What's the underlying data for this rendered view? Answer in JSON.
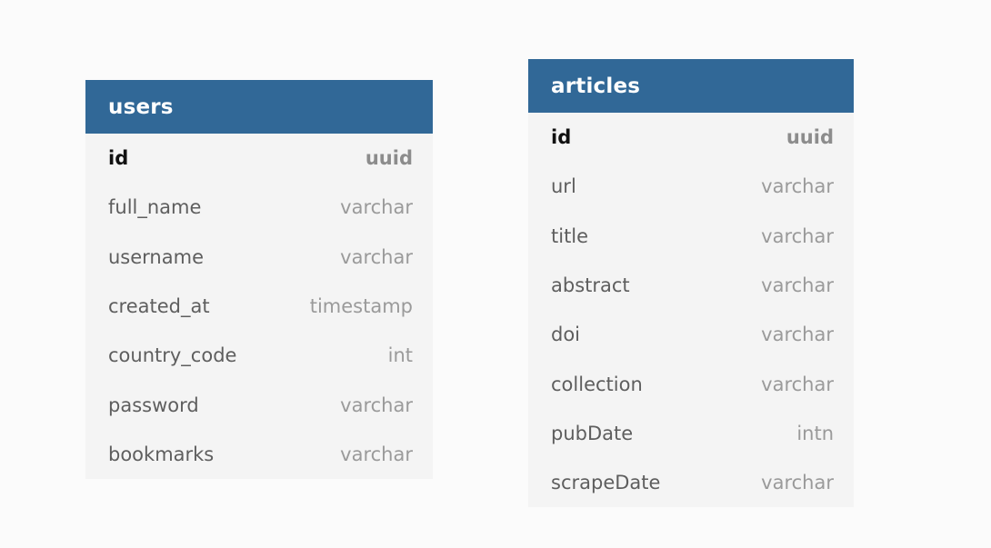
{
  "tables": [
    {
      "name": "users",
      "columns": [
        {
          "name": "id",
          "type": "uuid",
          "primary": true
        },
        {
          "name": "full_name",
          "type": "varchar",
          "primary": false
        },
        {
          "name": "username",
          "type": "varchar",
          "primary": false
        },
        {
          "name": "created_at",
          "type": "timestamp",
          "primary": false
        },
        {
          "name": "country_code",
          "type": "int",
          "primary": false
        },
        {
          "name": "password",
          "type": "varchar",
          "primary": false
        },
        {
          "name": "bookmarks",
          "type": "varchar",
          "primary": false
        }
      ]
    },
    {
      "name": "articles",
      "columns": [
        {
          "name": "id",
          "type": "uuid",
          "primary": true
        },
        {
          "name": "url",
          "type": "varchar",
          "primary": false
        },
        {
          "name": "title",
          "type": "varchar",
          "primary": false
        },
        {
          "name": "abstract",
          "type": "varchar",
          "primary": false
        },
        {
          "name": "doi",
          "type": "varchar",
          "primary": false
        },
        {
          "name": "collection",
          "type": "varchar",
          "primary": false
        },
        {
          "name": "pubDate",
          "type": "intn",
          "primary": false
        },
        {
          "name": "scrapeDate",
          "type": "varchar",
          "primary": false
        }
      ]
    }
  ],
  "colors": {
    "header_bg": "#316897",
    "header_text": "#ffffff",
    "row_bg": "#f4f4f4",
    "page_bg": "#fbfbfb"
  }
}
